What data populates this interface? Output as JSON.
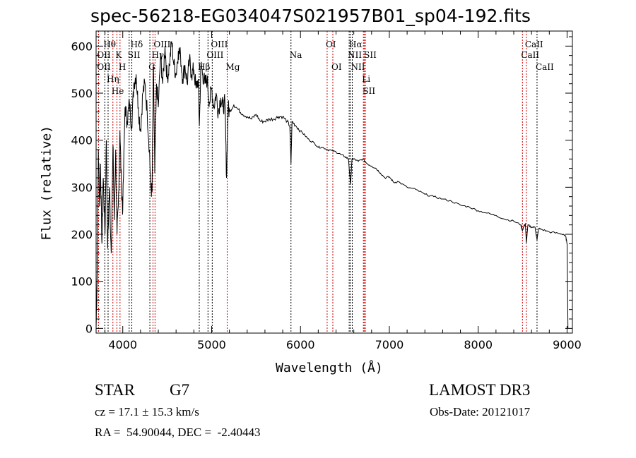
{
  "chart_data": {
    "type": "line",
    "title": "spec-56218-EG034047S021957B01_sp04-192.fits",
    "xlabel": "Wavelength (Å)",
    "ylabel": "Flux (relative)",
    "xlim": [
      3700,
      9060
    ],
    "ylim": [
      -10,
      632
    ],
    "xticks": [
      4000,
      5000,
      6000,
      7000,
      8000,
      9000
    ],
    "yticks": [
      0,
      100,
      200,
      300,
      400,
      500,
      600
    ],
    "grid": false,
    "series": [
      {
        "name": "spectrum",
        "x": [
          3700,
          3712,
          3725,
          3740,
          3750,
          3765,
          3780,
          3800,
          3815,
          3830,
          3850,
          3870,
          3890,
          3905,
          3920,
          3935,
          3950,
          3968,
          3985,
          4000,
          4025,
          4050,
          4075,
          4100,
          4125,
          4150,
          4175,
          4200,
          4225,
          4250,
          4275,
          4300,
          4315,
          4330,
          4345,
          4360,
          4380,
          4400,
          4425,
          4450,
          4475,
          4500,
          4525,
          4550,
          4575,
          4600,
          4625,
          4650,
          4675,
          4700,
          4725,
          4750,
          4775,
          4800,
          4825,
          4850,
          4862,
          4880,
          4900,
          4925,
          4950,
          4975,
          5000,
          5025,
          5050,
          5075,
          5100,
          5125,
          5150,
          5168,
          5185,
          5200,
          5250,
          5300,
          5350,
          5400,
          5450,
          5500,
          5550,
          5600,
          5650,
          5700,
          5750,
          5800,
          5850,
          5880,
          5893,
          5905,
          5950,
          6000,
          6050,
          6100,
          6150,
          6200,
          6250,
          6300,
          6350,
          6400,
          6450,
          6500,
          6540,
          6563,
          6580,
          6600,
          6650,
          6700,
          6750,
          6800,
          6850,
          6900,
          6950,
          7000,
          7050,
          7100,
          7200,
          7300,
          7400,
          7500,
          7600,
          7700,
          7800,
          7900,
          8000,
          8100,
          8200,
          8300,
          8400,
          8480,
          8498,
          8515,
          8530,
          8542,
          8560,
          8600,
          8640,
          8662,
          8680,
          8720,
          8800,
          8900,
          8960,
          8985,
          9000,
          9010
        ],
        "y": [
          0,
          120,
          380,
          260,
          350,
          180,
          320,
          200,
          400,
          170,
          300,
          160,
          390,
          230,
          380,
          200,
          260,
          420,
          300,
          250,
          470,
          440,
          480,
          430,
          520,
          540,
          470,
          420,
          500,
          520,
          460,
          380,
          300,
          290,
          560,
          330,
          520,
          470,
          580,
          520,
          600,
          530,
          560,
          610,
          560,
          540,
          590,
          580,
          530,
          560,
          520,
          570,
          540,
          550,
          510,
          530,
          430,
          560,
          540,
          520,
          530,
          480,
          510,
          470,
          500,
          460,
          490,
          470,
          480,
          320,
          470,
          460,
          475,
          465,
          455,
          450,
          445,
          455,
          440,
          440,
          445,
          445,
          450,
          450,
          440,
          430,
          350,
          440,
          430,
          420,
          410,
          400,
          395,
          385,
          385,
          380,
          378,
          375,
          370,
          365,
          360,
          305,
          360,
          360,
          355,
          360,
          350,
          345,
          340,
          330,
          320,
          322,
          310,
          312,
          300,
          295,
          285,
          280,
          275,
          270,
          262,
          258,
          250,
          245,
          240,
          232,
          228,
          220,
          208,
          218,
          222,
          182,
          220,
          215,
          215,
          188,
          212,
          210,
          205,
          202,
          200,
          195,
          180,
          0
        ]
      }
    ],
    "line_markers": [
      {
        "label": "OII",
        "wave": 3727,
        "color": "#cc0000",
        "row": 3
      },
      {
        "label": "OII",
        "wave": 3727,
        "color": "#cc0000",
        "row": 2
      },
      {
        "label": "Hθ",
        "wave": 3798,
        "color": "#000000",
        "row": 1
      },
      {
        "label": "Hη",
        "wave": 3835,
        "color": "#000000",
        "row": 3
      },
      {
        "label": "He",
        "wave": 3889,
        "color": "#cc0000",
        "row": 2
      },
      {
        "label": "K",
        "wave": 3934,
        "color": "#cc0000",
        "row": 1
      },
      {
        "label": "H",
        "wave": 3969,
        "color": "#cc0000",
        "row": 3
      },
      {
        "label": "SII",
        "wave": 4072,
        "color": "#000000",
        "row": 2
      },
      {
        "label": "Hδ",
        "wave": 4102,
        "color": "#000000",
        "row": 1
      },
      {
        "label": "G",
        "wave": 4305,
        "color": "#000000",
        "row": 3
      },
      {
        "label": "Hγ",
        "wave": 4340,
        "color": "#cc0000",
        "row": 2
      },
      {
        "label": "OIII",
        "wave": 4363,
        "color": "#cc0000",
        "row": 1
      },
      {
        "label": "Hβ",
        "wave": 4861,
        "color": "#000000",
        "row": 3
      },
      {
        "label": "OIII",
        "wave": 4959,
        "color": "#000000",
        "row": 2
      },
      {
        "label": "OIII",
        "wave": 5007,
        "color": "#000000",
        "row": 1
      },
      {
        "label": "Mg",
        "wave": 5175,
        "color": "#cc0000",
        "row": 3
      },
      {
        "label": "Na",
        "wave": 5893,
        "color": "#000000",
        "row": 2
      },
      {
        "label": "OI",
        "wave": 6300,
        "color": "#cc0000",
        "row": 1
      },
      {
        "label": "OI",
        "wave": 6364,
        "color": "#cc0000",
        "row": 3
      },
      {
        "label": "NII",
        "wave": 6548,
        "color": "#000000",
        "row": 2
      },
      {
        "label": "Hα",
        "wave": 6563,
        "color": "#000000",
        "row": 1
      },
      {
        "label": "NII",
        "wave": 6583,
        "color": "#000000",
        "row": 3
      },
      {
        "label": "Li",
        "wave": 6708,
        "color": "#cc0000",
        "row": 2
      },
      {
        "label": "SII",
        "wave": 6717,
        "color": "#cc0000",
        "row": 1
      },
      {
        "label": "SII",
        "wave": 6731,
        "color": "#cc0000",
        "row": 3
      },
      {
        "label": "CaII",
        "wave": 8498,
        "color": "#cc0000",
        "row": 2
      },
      {
        "label": "CaII",
        "wave": 8542,
        "color": "#cc0000",
        "row": 1
      },
      {
        "label": "CaII",
        "wave": 8662,
        "color": "#000000",
        "row": 3
      }
    ]
  },
  "info": {
    "object_class": "STAR",
    "subclass": "G7",
    "survey": "LAMOST DR3",
    "redshift": "cz = 17.1 ± 15.3 km/s",
    "obs_date": "Obs-Date: 20121017",
    "coords": "RA =  54.90044, DEC =  -2.40443"
  }
}
